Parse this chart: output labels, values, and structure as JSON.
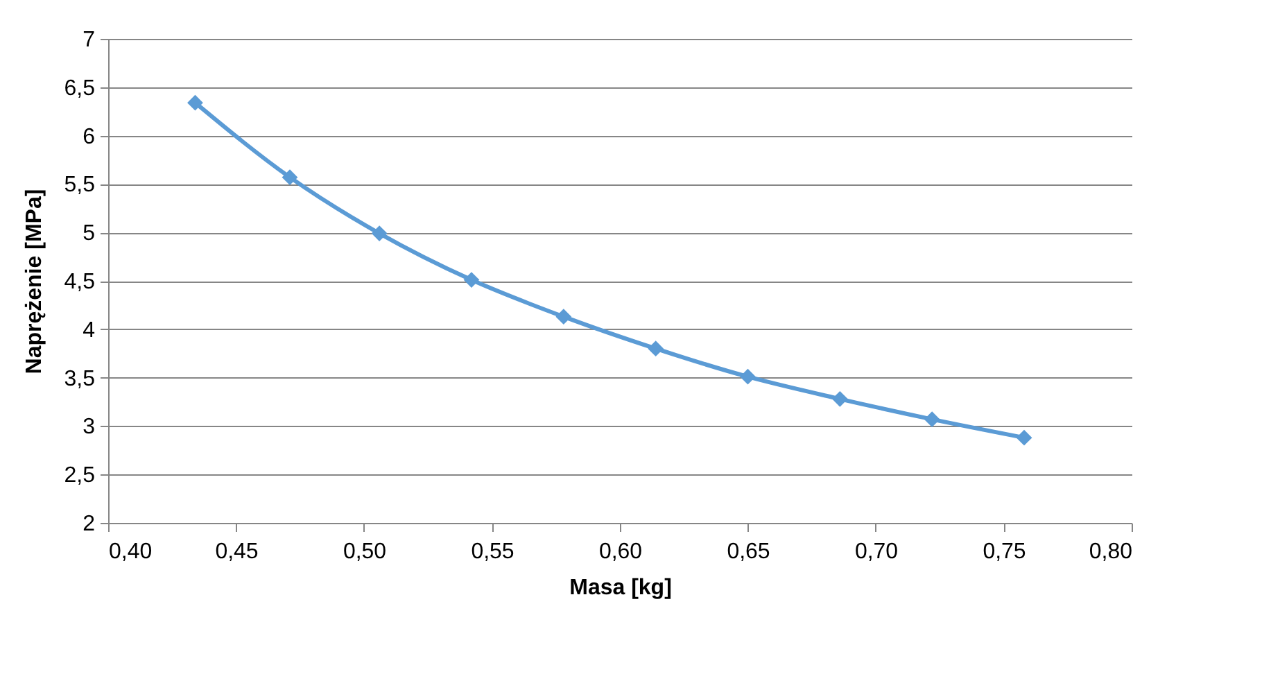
{
  "chart_data": {
    "type": "line",
    "xlabel": "Masa [kg]",
    "ylabel": "Naprężenie [MPa]",
    "x": [
      0.434,
      0.471,
      0.506,
      0.542,
      0.578,
      0.614,
      0.65,
      0.686,
      0.722,
      0.758
    ],
    "series": [
      {
        "color": "#5b9bd5",
        "values": [
          6.34,
          5.57,
          4.99,
          4.51,
          4.13,
          3.8,
          3.51,
          3.28,
          3.07,
          2.88
        ]
      }
    ],
    "xlim": [
      0.4,
      0.8
    ],
    "xticks": [
      {
        "value": 0.4,
        "label": "0,40"
      },
      {
        "value": 0.45,
        "label": "0,45"
      },
      {
        "value": 0.5,
        "label": "0,50"
      },
      {
        "value": 0.55,
        "label": "0,55"
      },
      {
        "value": 0.6,
        "label": "0,60"
      },
      {
        "value": 0.65,
        "label": "0,65"
      },
      {
        "value": 0.7,
        "label": "0,70"
      },
      {
        "value": 0.75,
        "label": "0,75"
      },
      {
        "value": 0.8,
        "label": "0,80"
      }
    ],
    "ylim": [
      2,
      7
    ],
    "yticks": [
      2,
      {
        "value": 2.5,
        "label": "2,5"
      },
      3,
      {
        "value": 3.5,
        "label": "3,5"
      },
      4,
      {
        "value": 4.5,
        "label": "4,5"
      },
      5,
      {
        "value": 5.5,
        "label": "5,5"
      },
      6,
      {
        "value": 6.5,
        "label": "6,5"
      },
      7
    ],
    "grid": "y",
    "marker": "diamond",
    "line_style": "solid"
  }
}
